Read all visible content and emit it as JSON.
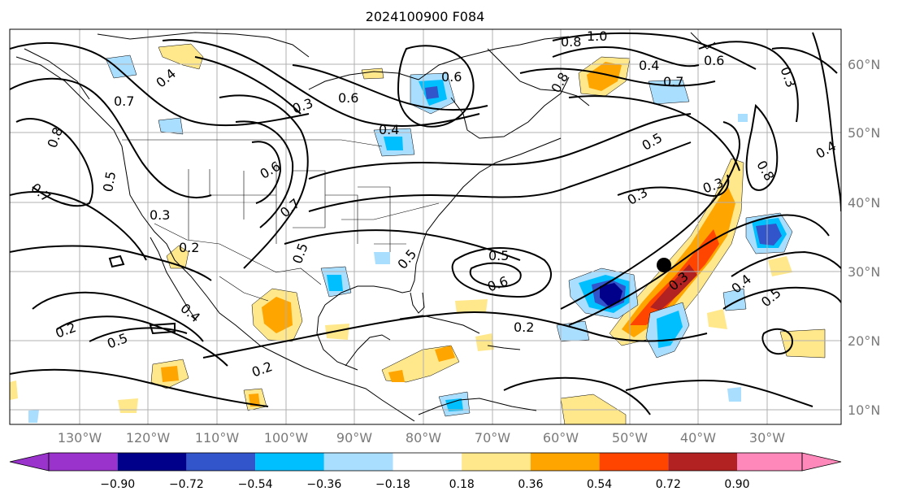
{
  "title": "2024100900 F084",
  "longitudes": [
    "130°W",
    "120°W",
    "110°W",
    "100°W",
    "90°W",
    "80°W",
    "70°W",
    "60°W",
    "50°W",
    "40°W",
    "30°W"
  ],
  "latitudes": [
    "60°N",
    "50°N",
    "40°N",
    "30°N",
    "20°N",
    "10°N"
  ],
  "colorbar": {
    "ticks": [
      "−0.90",
      "−0.72",
      "−0.54",
      "−0.36",
      "−0.18",
      "0.18",
      "0.36",
      "0.54",
      "0.72",
      "0.90"
    ],
    "colors": [
      "#9933cc",
      "#00008b",
      "#3355cc",
      "#00bfff",
      "#aadeff",
      "#ffffff",
      "#ffe88c",
      "#ffa500",
      "#ff4500",
      "#b22222",
      "#ff88bb"
    ]
  },
  "contour_labels": [
    {
      "text": "0.4"
    },
    {
      "text": "0.7"
    },
    {
      "text": "0.8"
    },
    {
      "text": "0.5"
    },
    {
      "text": "0.7"
    },
    {
      "text": "0.3"
    },
    {
      "text": "0.2"
    },
    {
      "text": "0.6"
    },
    {
      "text": "0.3"
    },
    {
      "text": "0.4"
    },
    {
      "text": "0.6"
    },
    {
      "text": "0.6"
    },
    {
      "text": "0.7"
    },
    {
      "text": "0.5"
    },
    {
      "text": "0.2"
    },
    {
      "text": "0.4"
    },
    {
      "text": "0.5"
    },
    {
      "text": "0.2"
    },
    {
      "text": "0.5"
    },
    {
      "text": "0.6"
    },
    {
      "text": "0.2"
    },
    {
      "text": "0.3"
    },
    {
      "text": "0.5"
    },
    {
      "text": "0.3"
    },
    {
      "text": "0.8"
    },
    {
      "text": "1.0"
    },
    {
      "text": "0.8"
    },
    {
      "text": "0.4"
    },
    {
      "text": "0.6"
    },
    {
      "text": "0.7"
    },
    {
      "text": "0.3"
    },
    {
      "text": "0.4"
    },
    {
      "text": "0.5"
    },
    {
      "text": "0.8"
    },
    {
      "text": "0.4"
    },
    {
      "text": "0.5"
    },
    {
      "text": "0.3"
    }
  ]
}
